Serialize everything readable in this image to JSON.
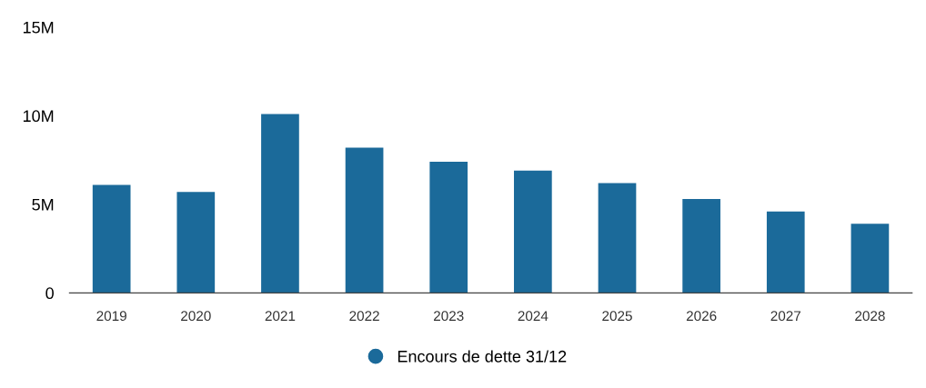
{
  "chart_data": {
    "type": "bar",
    "categories": [
      "2019",
      "2020",
      "2021",
      "2022",
      "2023",
      "2024",
      "2025",
      "2026",
      "2027",
      "2028"
    ],
    "series": [
      {
        "name": "Encours de dette 31/12",
        "color": "#1b6a9a",
        "values": [
          6.1,
          5.7,
          10.1,
          8.2,
          7.4,
          6.9,
          6.2,
          5.3,
          4.6,
          3.9
        ]
      }
    ],
    "ylim": [
      0,
      15
    ],
    "yticks": [
      0,
      {
        "value": 5,
        "label": "5M"
      },
      {
        "value": 10,
        "label": "10M"
      },
      {
        "value": 15,
        "label": "15M"
      }
    ],
    "grid": false,
    "legend": "bottom"
  }
}
